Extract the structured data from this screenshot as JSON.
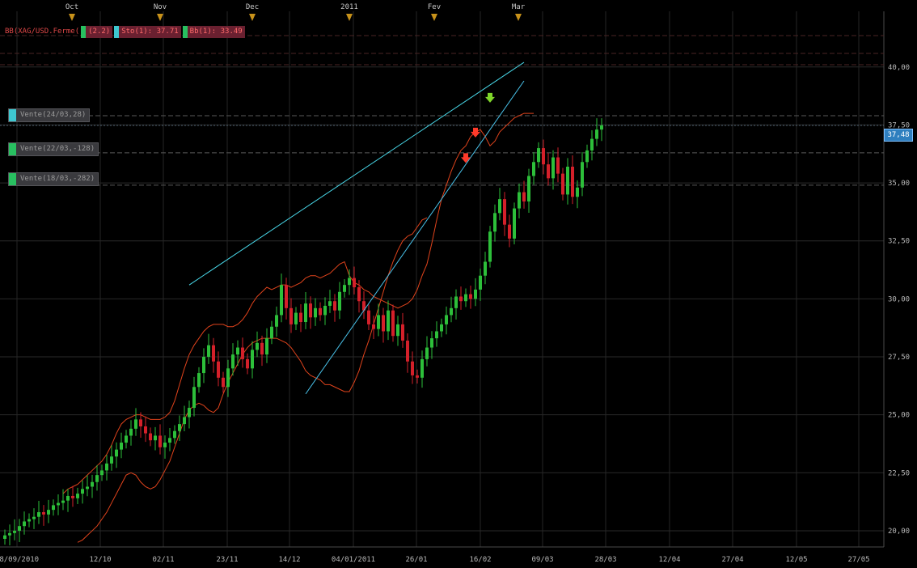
{
  "chart_data": {
    "type": "candlestick",
    "instrument_label": "BB(XAG/USD.Ferme(",
    "header_tags": [
      "(2.2)",
      "Sto(1): 37.71",
      "Bb(1): 33.49"
    ],
    "ylim": [
      19.3,
      42.4
    ],
    "y_ticks": [
      "20,00",
      "22,50",
      "25,00",
      "27,50",
      "30,00",
      "32,50",
      "35,00",
      "37,50",
      "40,00"
    ],
    "y_tick_values": [
      20,
      22.5,
      25,
      27.5,
      30,
      32.5,
      35,
      37.5,
      40
    ],
    "x_ticks": [
      "08/09/2010",
      "12/10",
      "02/11",
      "23/11",
      "14/12",
      "04/01/2011",
      "26/01",
      "16/02",
      "09/03",
      "28/03",
      "12/04",
      "27/04",
      "12/05",
      "27/05"
    ],
    "month_markers": [
      "Oct",
      "Nov",
      "Dec",
      "2011",
      "Fev",
      "Mar"
    ],
    "current_price": "37,48",
    "orders": [
      {
        "label": "Vente(24/03,28)",
        "color": "#3ec7d0",
        "price": 37.9
      },
      {
        "label": "Vente(22/03,-128)",
        "color": "#28c060",
        "price": 36.3
      },
      {
        "label": "Vente(18/03,-282)",
        "color": "#28c060",
        "price": 34.9
      }
    ],
    "close_series": [
      19.8,
      19.9,
      20.0,
      20.2,
      20.4,
      20.5,
      20.6,
      20.8,
      20.7,
      20.9,
      21.1,
      21.2,
      21.3,
      21.5,
      21.4,
      21.6,
      21.8,
      21.9,
      22.1,
      22.4,
      22.6,
      22.9,
      23.2,
      23.5,
      23.8,
      24.1,
      24.4,
      24.8,
      24.5,
      24.2,
      23.9,
      24.1,
      23.6,
      23.8,
      24.0,
      24.3,
      24.6,
      24.9,
      25.3,
      26.2,
      26.8,
      27.5,
      28.0,
      27.3,
      26.6,
      26.2,
      27.0,
      27.6,
      27.9,
      27.4,
      27.0,
      27.8,
      28.1,
      27.6,
      28.3,
      28.8,
      29.3,
      30.6,
      29.6,
      28.9,
      29.4,
      29.0,
      29.8,
      29.2,
      29.6,
      29.3,
      29.7,
      29.9,
      29.5,
      30.3,
      30.6,
      30.9,
      30.5,
      29.9,
      29.5,
      28.9,
      28.7,
      29.3,
      28.6,
      29.5,
      28.4,
      28.9,
      28.2,
      27.3,
      26.7,
      26.6,
      27.4,
      27.9,
      28.3,
      28.6,
      28.9,
      29.3,
      29.6,
      30.1,
      29.9,
      30.2,
      30.0,
      30.4,
      31.0,
      31.6,
      32.9,
      33.7,
      34.3,
      33.2,
      32.6,
      33.9,
      34.6,
      34.2,
      35.3,
      35.9,
      36.5,
      35.8,
      35.2,
      36.1,
      35.4,
      34.5,
      35.7,
      34.4,
      34.8,
      35.9,
      36.4,
      36.9,
      37.3,
      37.48
    ],
    "bb_upper": [
      null,
      null,
      null,
      null,
      null,
      null,
      null,
      null,
      null,
      null,
      null,
      null,
      21.6,
      21.8,
      21.9,
      22.0,
      22.2,
      22.4,
      22.6,
      22.8,
      23.0,
      23.3,
      23.7,
      24.2,
      24.6,
      24.8,
      24.9,
      25.0,
      25.0,
      24.9,
      24.8,
      24.8,
      24.8,
      24.9,
      25.1,
      25.6,
      26.3,
      27.0,
      27.6,
      28.0,
      28.3,
      28.6,
      28.8,
      28.9,
      28.9,
      28.9,
      28.8,
      28.8,
      28.9,
      29.1,
      29.4,
      29.8,
      30.1,
      30.3,
      30.5,
      30.4,
      30.5,
      30.6,
      30.6,
      30.5,
      30.6,
      30.7,
      30.9,
      31.0,
      31.0,
      30.9,
      31.0,
      31.1,
      31.3,
      31.5,
      31.6,
      31.0,
      30.7,
      30.6,
      30.4,
      30.3,
      30.1,
      30.0,
      29.9,
      29.8,
      29.7,
      29.6,
      29.7,
      29.8,
      30.0,
      30.4,
      31.0,
      31.5,
      32.4,
      33.4,
      34.3,
      34.9,
      35.5,
      36.0,
      36.4,
      36.6,
      37.0,
      37.2,
      37.3,
      37.0,
      36.6,
      36.8,
      37.2,
      37.4,
      37.6,
      37.8,
      37.9,
      38.0,
      38.0,
      38.0
    ],
    "bb_lower": [
      null,
      null,
      null,
      null,
      null,
      null,
      null,
      null,
      null,
      null,
      null,
      null,
      19.5,
      19.6,
      19.8,
      20.0,
      20.2,
      20.5,
      20.8,
      21.2,
      21.6,
      22.0,
      22.4,
      22.5,
      22.4,
      22.1,
      21.9,
      21.8,
      21.9,
      22.2,
      22.6,
      23.0,
      23.6,
      24.2,
      24.8,
      25.2,
      25.4,
      25.5,
      25.4,
      25.2,
      25.1,
      25.3,
      25.9,
      26.4,
      26.8,
      27.2,
      27.6,
      27.9,
      28.1,
      28.2,
      28.3,
      28.3,
      28.3,
      28.3,
      28.2,
      28.1,
      27.9,
      27.6,
      27.3,
      26.9,
      26.7,
      26.6,
      26.5,
      26.3,
      26.3,
      26.2,
      26.1,
      26.0,
      26.0,
      26.4,
      26.9,
      27.6,
      28.2,
      28.9,
      29.6,
      30.3,
      31.0,
      31.6,
      32.1,
      32.5,
      32.7,
      32.8,
      33.1,
      33.4,
      33.5
    ],
    "trendlines": [
      {
        "name": "upper",
        "color": "#49d9ea",
        "from": [
          38,
          30.6
        ],
        "to": [
          107,
          40.2
        ]
      },
      {
        "name": "lower",
        "color": "#49c2ea",
        "from": [
          62,
          25.9
        ],
        "to": [
          107,
          39.4
        ]
      }
    ],
    "signals": [
      {
        "type": "buy-arrow",
        "color": "#7fd52a",
        "index": 100,
        "price": 38.6
      },
      {
        "type": "sell-arrow",
        "color": "#ff3a2a",
        "index": 97,
        "price": 37.1
      },
      {
        "type": "sell-arrow",
        "color": "#ff3a2a",
        "index": 95,
        "price": 36.0
      }
    ],
    "grid": true,
    "colors": {
      "up": "#2dbf3a",
      "down": "#d4202a",
      "bands": "#e0431c",
      "background": "#000000"
    }
  }
}
